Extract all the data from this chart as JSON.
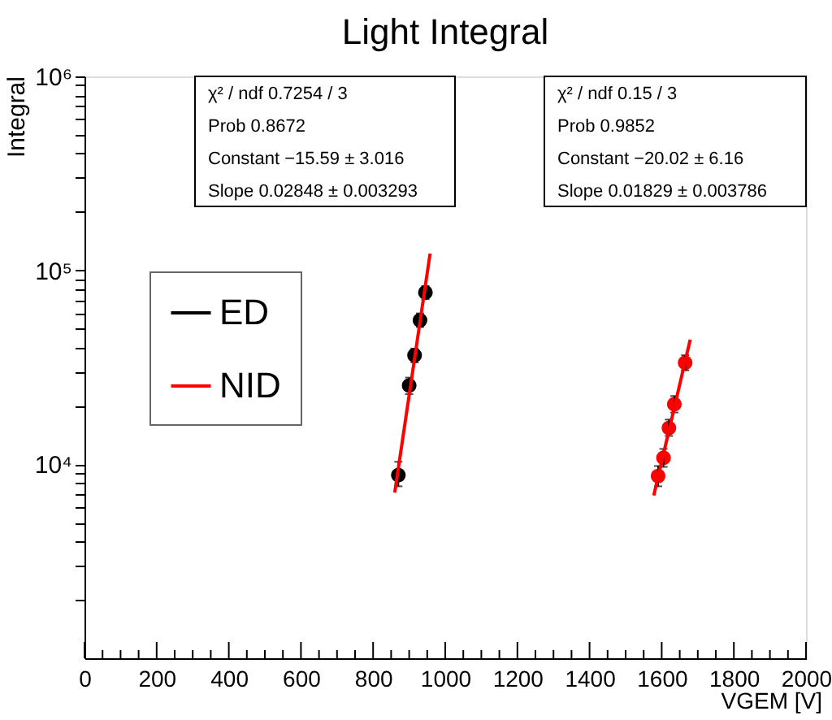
{
  "chart_data": {
    "type": "scatter",
    "title": "Light Integral",
    "xlabel": "VGEM [V]",
    "ylabel": "Integral",
    "xlim": [
      0,
      2000
    ],
    "ylim": [
      1000,
      1000000
    ],
    "log": "y",
    "grid": false,
    "legend": "top left",
    "marker": "circle",
    "xticks": [
      0,
      {
        "value": 50,
        "label": null
      },
      {
        "value": 100,
        "label": null
      },
      {
        "value": 150,
        "label": null
      },
      200,
      {
        "value": 250,
        "label": null
      },
      {
        "value": 300,
        "label": null
      },
      {
        "value": 350,
        "label": null
      },
      400,
      {
        "value": 450,
        "label": null
      },
      {
        "value": 500,
        "label": null
      },
      {
        "value": 550,
        "label": null
      },
      600,
      {
        "value": 650,
        "label": null
      },
      {
        "value": 700,
        "label": null
      },
      {
        "value": 750,
        "label": null
      },
      800,
      {
        "value": 850,
        "label": null
      },
      {
        "value": 900,
        "label": null
      },
      {
        "value": 950,
        "label": null
      },
      1000,
      {
        "value": 1050,
        "label": null
      },
      {
        "value": 1100,
        "label": null
      },
      {
        "value": 1150,
        "label": null
      },
      1200,
      {
        "value": 1250,
        "label": null
      },
      {
        "value": 1300,
        "label": null
      },
      {
        "value": 1350,
        "label": null
      },
      1400,
      {
        "value": 1450,
        "label": null
      },
      {
        "value": 1500,
        "label": null
      },
      {
        "value": 1550,
        "label": null
      },
      1600,
      {
        "value": 1650,
        "label": null
      },
      {
        "value": 1700,
        "label": null
      },
      {
        "value": 1750,
        "label": null
      },
      1800,
      {
        "value": 1850,
        "label": null
      },
      {
        "value": 1900,
        "label": null
      },
      {
        "value": 1950,
        "label": null
      },
      2000
    ],
    "yticks": [
      {
        "value": 2000,
        "label": null
      },
      {
        "value": 3000,
        "label": null
      },
      {
        "value": 4000,
        "label": null
      },
      {
        "value": 5000,
        "label": null
      },
      {
        "value": 6000,
        "label": null
      },
      {
        "value": 7000,
        "label": null
      },
      {
        "value": 8000,
        "label": null
      },
      {
        "value": 9000,
        "label": null
      },
      {
        "value": 10000,
        "label": "10⁴"
      },
      {
        "value": 20000,
        "label": null
      },
      {
        "value": 30000,
        "label": null
      },
      {
        "value": 40000,
        "label": null
      },
      {
        "value": 50000,
        "label": null
      },
      {
        "value": 60000,
        "label": null
      },
      {
        "value": 70000,
        "label": null
      },
      {
        "value": 80000,
        "label": null
      },
      {
        "value": 90000,
        "label": null
      },
      {
        "value": 100000,
        "label": "10⁵"
      },
      {
        "value": 200000,
        "label": null
      },
      {
        "value": 300000,
        "label": null
      },
      {
        "value": 400000,
        "label": null
      },
      {
        "value": 500000,
        "label": null
      },
      {
        "value": 600000,
        "label": null
      },
      {
        "value": 700000,
        "label": null
      },
      {
        "value": 800000,
        "label": null
      },
      {
        "value": 900000,
        "label": null
      },
      {
        "value": 1000000,
        "label": "10⁶"
      }
    ],
    "series": [
      {
        "name": "ED",
        "type": "scatter",
        "color": "#000000",
        "x": [
          870,
          900,
          915,
          930,
          945
        ],
        "values": [
          8800,
          25500,
          36500,
          55300,
          76900
        ],
        "errors": [
          [
            7700,
            10300
          ],
          [
            23000,
            28000
          ],
          [
            33500,
            39500
          ],
          [
            51000,
            60000
          ],
          [
            71000,
            83000
          ]
        ]
      },
      {
        "name": "NID",
        "type": "scatter",
        "color": "#ff0000",
        "x": [
          1590,
          1605,
          1620,
          1635,
          1665
        ],
        "values": [
          8700,
          10800,
          15400,
          20400,
          33400
        ],
        "errors": [
          [
            7700,
            9800
          ],
          [
            9700,
            12000
          ],
          [
            14000,
            17000
          ],
          [
            18500,
            22500
          ],
          [
            30500,
            36500
          ]
        ]
      },
      {
        "type": "line",
        "color": "#ff0000",
        "x": [
          860,
          958
        ],
        "values": [
          7150,
          122000
        ],
        "marker": "none"
      },
      {
        "type": "line",
        "color": "#ff0000",
        "x": [
          1578,
          1679
        ],
        "values": [
          6900,
          43900
        ],
        "marker": "none"
      }
    ],
    "annotations": [
      "χ² / ndf   0.7254 / 3",
      "Prob   0.8672",
      "Constant   −15.59 ± 3.016",
      "Slope   0.02848 ± 0.003293",
      "χ² / ndf   0.15 / 3",
      "Prob   0.9852",
      "Constant   −20.02 ± 6.16",
      "Slope   0.01829 ± 0.003786"
    ]
  }
}
